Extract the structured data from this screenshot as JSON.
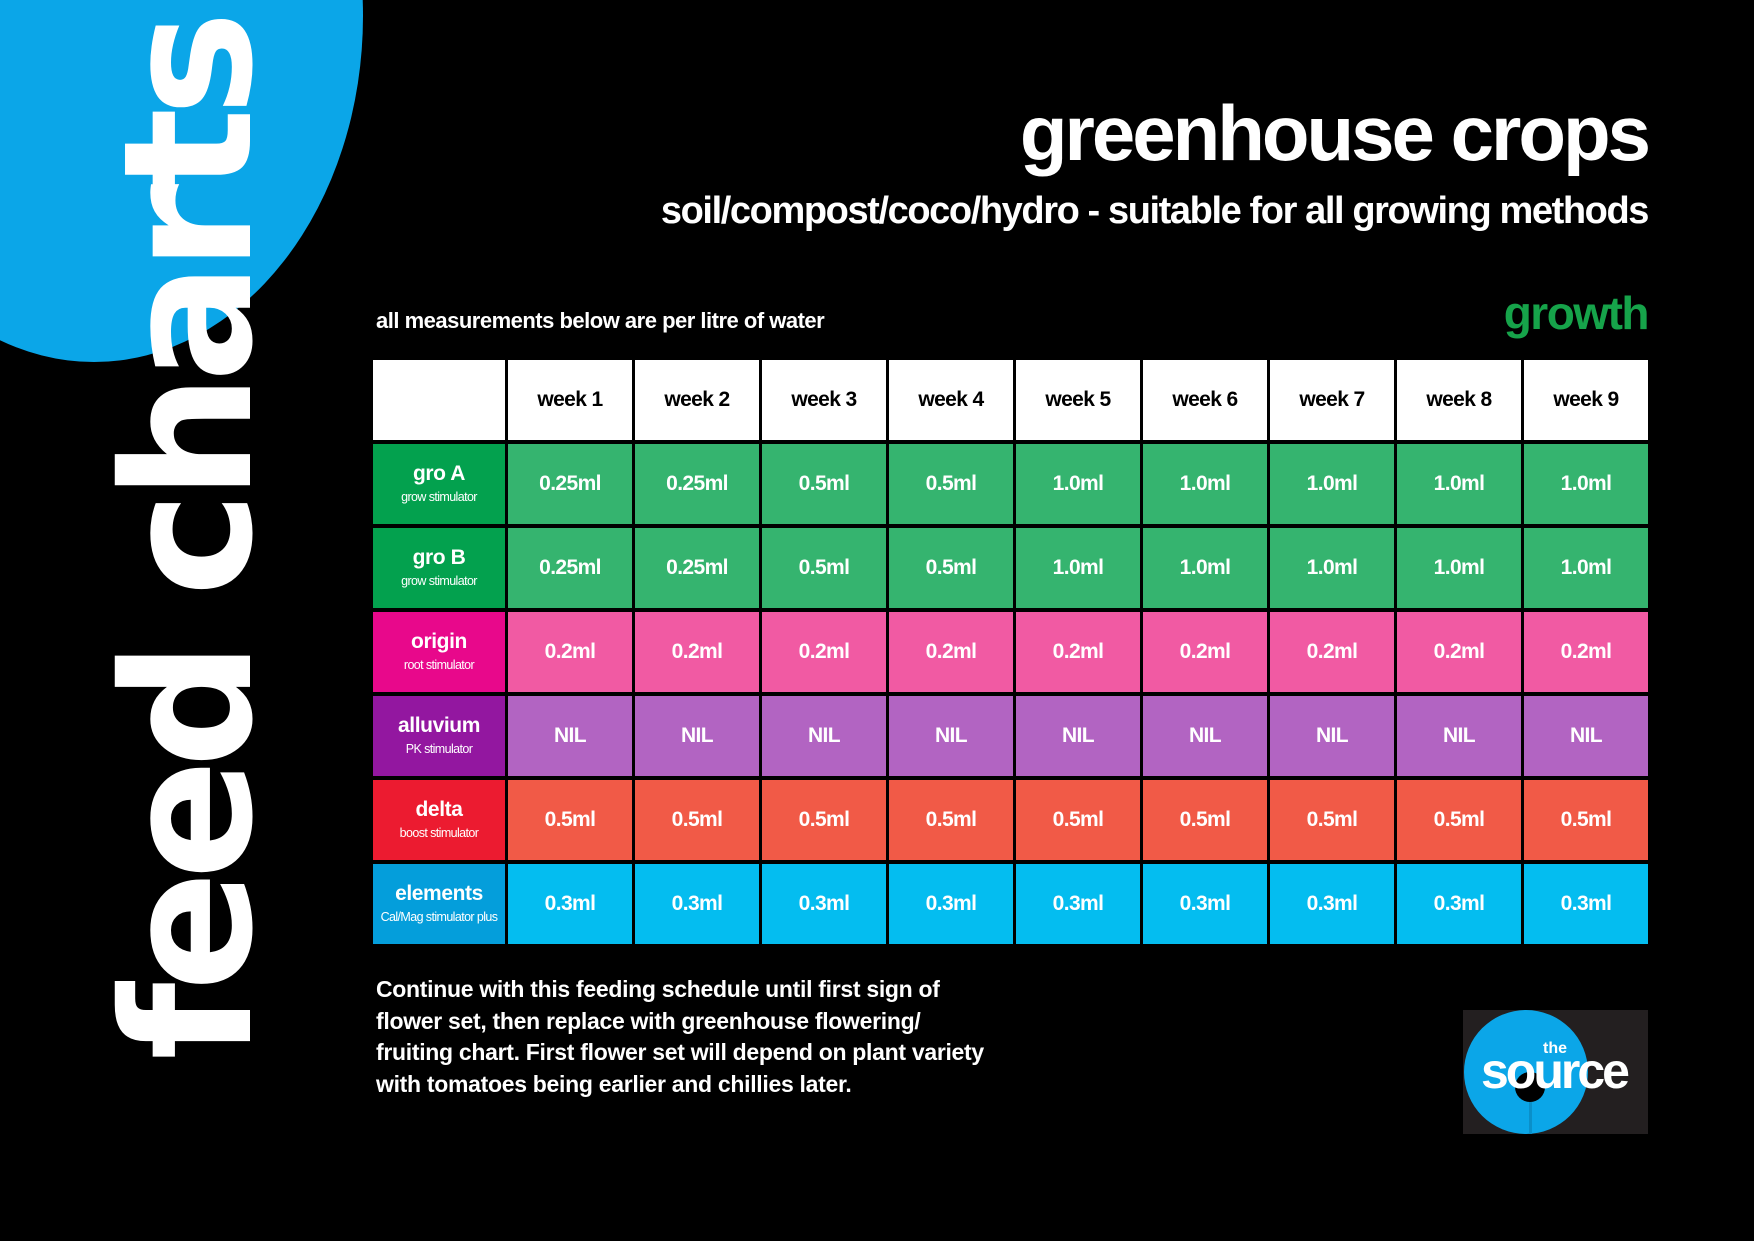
{
  "side_title": "feed charts",
  "title": "greenhouse crops",
  "subtitle": "soil/compost/coco/hydro - suitable for all growing methods",
  "measurement_note": "all measurements below are per litre of water",
  "stage_label": "growth",
  "stage_color": "#16a34a",
  "table": {
    "columns": [
      "week 1",
      "week 2",
      "week 3",
      "week 4",
      "week 5",
      "week 6",
      "week 7",
      "week 8",
      "week 9"
    ],
    "rows": [
      {
        "name": "gro A",
        "sub": "grow stimulator",
        "label_color": "#03a14e",
        "cell_color": "#35b46f",
        "values": [
          "0.25ml",
          "0.25ml",
          "0.5ml",
          "0.5ml",
          "1.0ml",
          "1.0ml",
          "1.0ml",
          "1.0ml",
          "1.0ml"
        ]
      },
      {
        "name": "gro B",
        "sub": "grow stimulator",
        "label_color": "#03a14e",
        "cell_color": "#35b46f",
        "values": [
          "0.25ml",
          "0.25ml",
          "0.5ml",
          "0.5ml",
          "1.0ml",
          "1.0ml",
          "1.0ml",
          "1.0ml",
          "1.0ml"
        ]
      },
      {
        "name": "origin",
        "sub": "root stimulator",
        "label_color": "#e8088b",
        "cell_color": "#f15aa3",
        "values": [
          "0.2ml",
          "0.2ml",
          "0.2ml",
          "0.2ml",
          "0.2ml",
          "0.2ml",
          "0.2ml",
          "0.2ml",
          "0.2ml"
        ]
      },
      {
        "name": "alluvium",
        "sub": "PK stimulator",
        "label_color": "#9317a0",
        "cell_color": "#b264c2",
        "values": [
          "NIL",
          "NIL",
          "NIL",
          "NIL",
          "NIL",
          "NIL",
          "NIL",
          "NIL",
          "NIL"
        ]
      },
      {
        "name": "delta",
        "sub": "boost stimulator",
        "label_color": "#ec1b30",
        "cell_color": "#f15a47",
        "values": [
          "0.5ml",
          "0.5ml",
          "0.5ml",
          "0.5ml",
          "0.5ml",
          "0.5ml",
          "0.5ml",
          "0.5ml",
          "0.5ml"
        ]
      },
      {
        "name": "elements",
        "sub": "Cal/Mag stimulator plus",
        "label_color": "#049edb",
        "cell_color": "#04bdf0",
        "values": [
          "0.3ml",
          "0.3ml",
          "0.3ml",
          "0.3ml",
          "0.3ml",
          "0.3ml",
          "0.3ml",
          "0.3ml",
          "0.3ml"
        ]
      }
    ]
  },
  "footnote": "Continue with this feeding schedule until first sign of flower set, then replace with greenhouse flowering/ fruiting chart. First flower set will depend on plant variety with tomatoes being earlier and chillies later.",
  "logo": {
    "small": "the",
    "word": "source"
  },
  "colors": {
    "brand_blue": "#0ba6e8",
    "background": "#000000"
  }
}
